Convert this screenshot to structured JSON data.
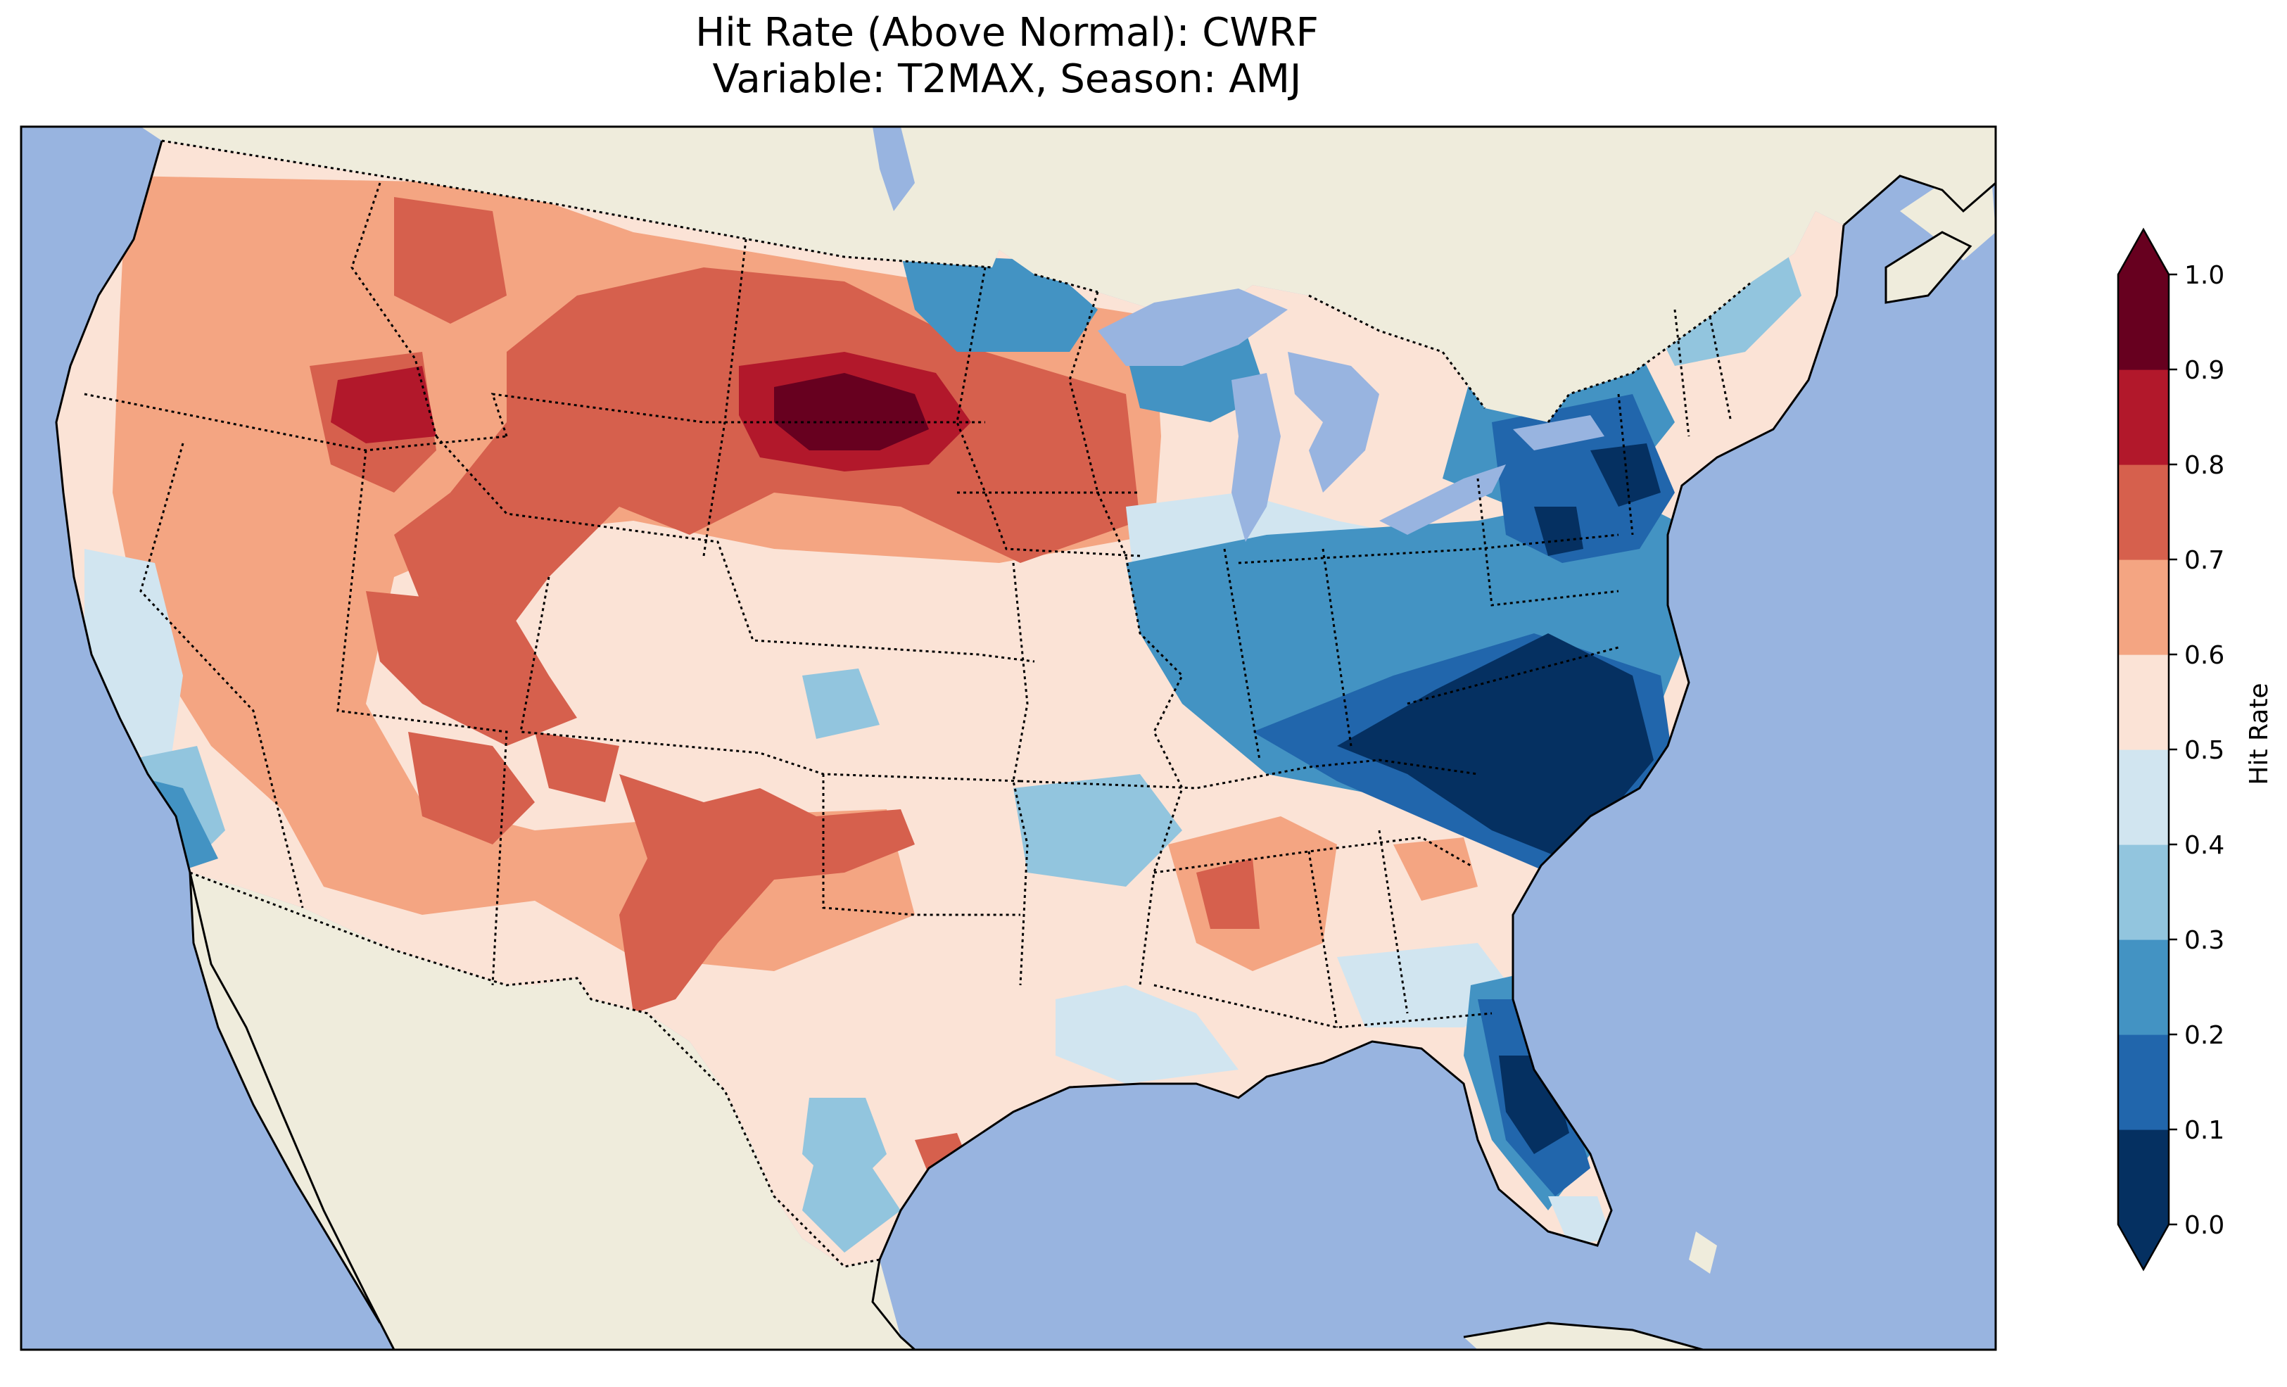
{
  "title": {
    "line1": "Hit Rate (Above Normal): CWRF",
    "line2": "Variable: T2MAX, Season: AMJ"
  },
  "colors": {
    "ocean": "#98b4e0",
    "land": "#efecdc",
    "lakes": "#98b4e0",
    "coastline": "#000000"
  },
  "colorbar": {
    "label": "Hit Rate",
    "extend": "both",
    "ticks": [
      "0.0",
      "0.1",
      "0.2",
      "0.3",
      "0.4",
      "0.5",
      "0.6",
      "0.7",
      "0.8",
      "0.9",
      "1.0"
    ],
    "colors": [
      "#053061",
      "#2166ac",
      "#4393c3",
      "#92c5de",
      "#d1e5f0",
      "#fbe3d6",
      "#f4a582",
      "#d6604d",
      "#b2182b",
      "#67001f"
    ],
    "under_color": "#053061",
    "over_color": "#67001f"
  },
  "map_data": {
    "extent": "Contiguous United States with parts of Canada and Mexico",
    "summary": "West and Great Plains mostly above 0.5 (reds), peak 0.9-1.0 over South Dakota/Montana; East and Southeast mostly below 0.4 (blues), minimum 0.0-0.1 over Virginia/North Carolina/Florida",
    "regions": [
      {
        "area": "pacific-northwest",
        "level": 0.75
      },
      {
        "area": "northern-rockies",
        "level": 0.75
      },
      {
        "area": "idaho-montana-core",
        "level": 0.85
      },
      {
        "area": "great-basin",
        "level": 0.55
      },
      {
        "area": "california-coast",
        "level": 0.45
      },
      {
        "area": "southern-california",
        "level": 0.3
      },
      {
        "area": "four-corners",
        "level": 0.75
      },
      {
        "area": "northern-plains",
        "level": 0.75
      },
      {
        "area": "south-dakota-core",
        "level": 0.95
      },
      {
        "area": "nebraska-kansas",
        "level": 0.55
      },
      {
        "area": "southern-plains",
        "level": 0.55
      },
      {
        "area": "new-mexico-west-texas",
        "level": 0.75
      },
      {
        "area": "minnesota-wisconsin",
        "level": 0.25
      },
      {
        "area": "michigan",
        "level": 0.45
      },
      {
        "area": "ohio-valley",
        "level": 0.25
      },
      {
        "area": "arkansas-missouri",
        "level": 0.35
      },
      {
        "area": "mississippi-alabama",
        "level": 0.65
      },
      {
        "area": "gulf-coast",
        "level": 0.45
      },
      {
        "area": "appalachians",
        "level": 0.05
      },
      {
        "area": "carolinas",
        "level": 0.05
      },
      {
        "area": "new-york-pennsylvania",
        "level": 0.15
      },
      {
        "area": "new-england",
        "level": 0.35
      },
      {
        "area": "georgia-coast",
        "level": 0.15
      },
      {
        "area": "florida-peninsula",
        "level": 0.05
      },
      {
        "area": "south-texas",
        "level": 0.35
      }
    ]
  }
}
